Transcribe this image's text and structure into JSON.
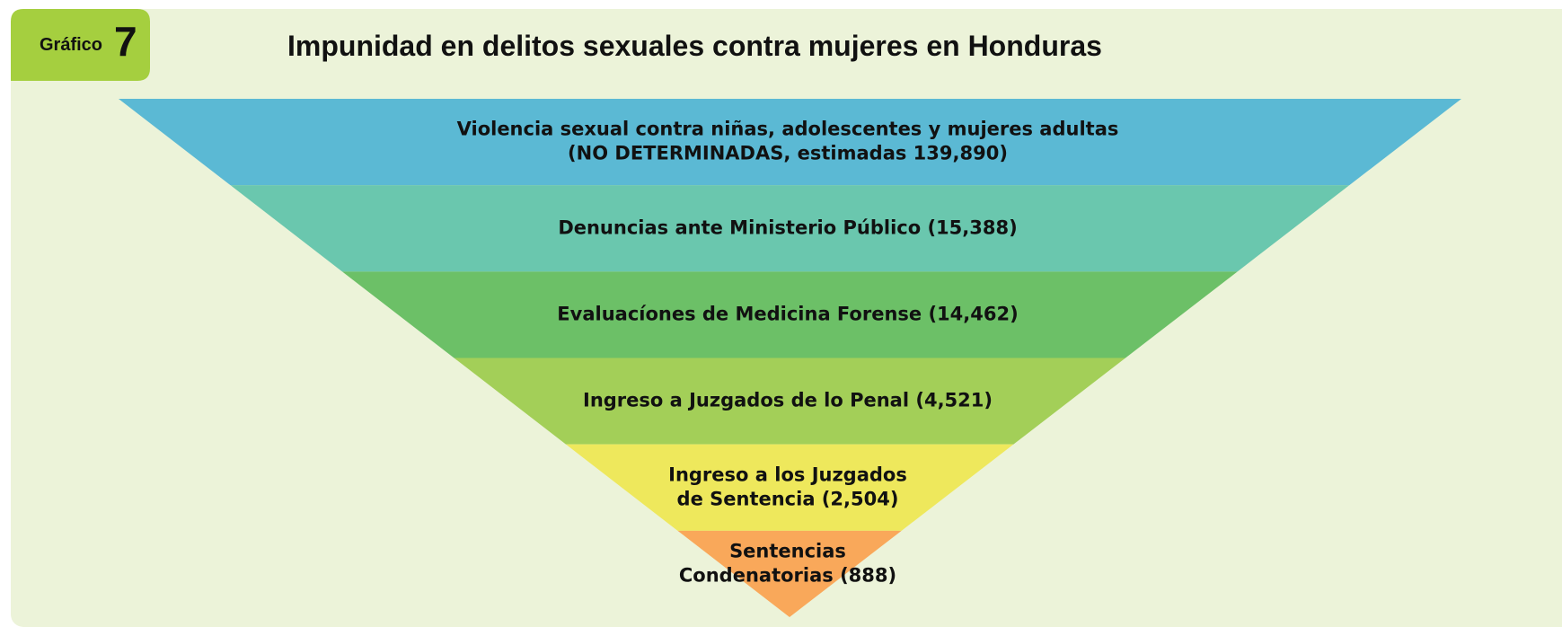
{
  "badge": {
    "label": "Gráfico",
    "number": "7"
  },
  "title": "Impunidad en delitos sexuales contra mujeres en Honduras",
  "levels": [
    {
      "lines": [
        "Violencia sexual contra niñas, adolescentes y mujeres adultas",
        "(NO DETERMINADAS, estimadas 139,890)"
      ],
      "color": "#5bb9d4"
    },
    {
      "lines": [
        "Denuncias ante Ministerio Público (15,388)"
      ],
      "color": "#6ac7ae"
    },
    {
      "lines": [
        "Evaluacíones de Medicina Forense (14,462)"
      ],
      "color": "#6cc067"
    },
    {
      "lines": [
        "Ingreso a Juzgados de lo Penal (4,521)"
      ],
      "color": "#a3cf58"
    },
    {
      "lines": [
        "Ingreso a los Juzgados",
        "de Sentencia (2,504)"
      ],
      "color": "#eee85c"
    },
    {
      "lines": [
        "Sentencias",
        "Condenatorias (888)"
      ],
      "color": "#f9a85a"
    }
  ]
}
